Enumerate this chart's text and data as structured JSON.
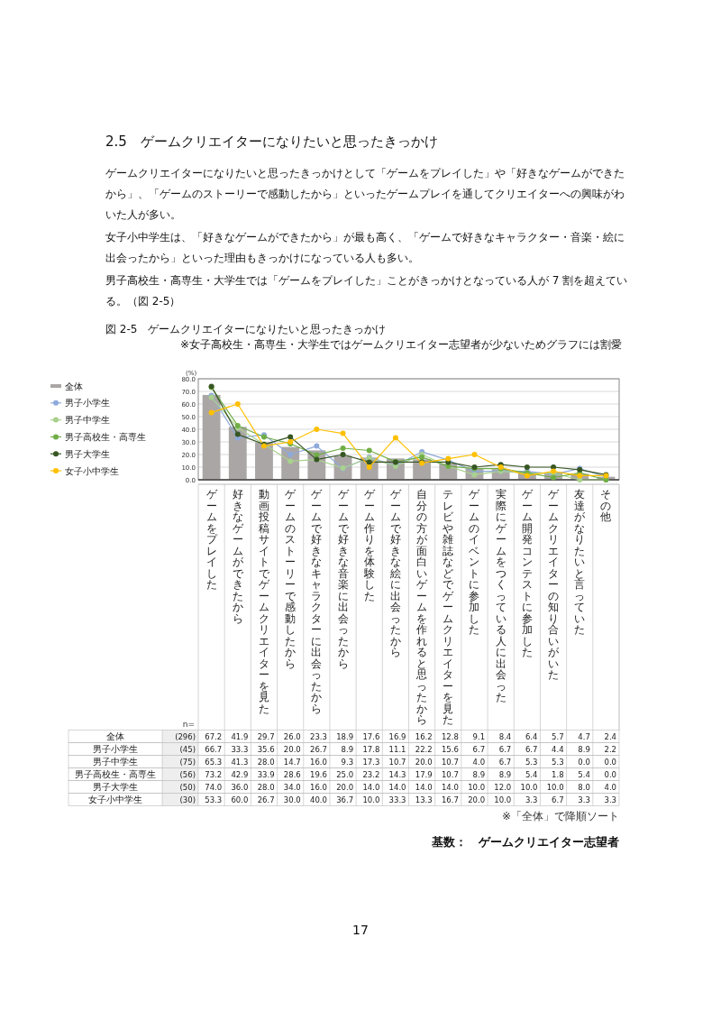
{
  "chart_data": {
    "type": "line",
    "title": "図 2-5　ゲームクリエイターになりたいと思ったきっかけ",
    "ylabel": "(%)",
    "categories": [
      "ゲームをプレイした",
      "好きなゲームができたから",
      "動画投稿サイトでゲームクリエイターを見た",
      "ゲームのストーリーで感動したから",
      "ゲームで好きなキャラクターに出会ったから",
      "ゲームで好きな音楽に出会ったから",
      "ゲーム作りを体験した",
      "ゲームで好きな絵に出会ったから",
      "自分の方が面白いゲームを作れると思ったから",
      "テレビや雑誌などでゲームクリエイターを見た",
      "ゲームのイベントに参加した",
      "実際にゲームをつくっている人に出会った",
      "ゲーム開発コンテストに参加した",
      "ゲームクリエイターの知り合いがいた",
      "友達がなりたいと言っていた",
      "その他"
    ],
    "series": [
      {
        "name": "全体",
        "type": "bar",
        "color": "#aba6a6",
        "values": [
          67.2,
          41.9,
          29.7,
          26.0,
          23.3,
          18.9,
          17.6,
          16.9,
          16.2,
          12.8,
          9.1,
          8.4,
          6.4,
          5.7,
          4.7,
          2.4
        ],
        "value_labels": [
          "67.2",
          "41.9",
          "29.7",
          "26.0",
          "23.3",
          "18.9",
          "17.6",
          "16.9",
          "16.2",
          "12.8",
          "9.1",
          "8.4",
          "6.4",
          "5.7",
          "4.7",
          "2.4"
        ]
      },
      {
        "name": "男子小学生",
        "color": "#8eaadb",
        "values": [
          66.7,
          33.3,
          35.6,
          20.0,
          26.7,
          8.9,
          17.8,
          11.1,
          22.2,
          15.6,
          6.7,
          6.7,
          6.7,
          4.4,
          8.9,
          2.2
        ],
        "value_labels": [
          "66.7",
          "33.3",
          "35.6",
          "20.0",
          "26.7",
          "8.9",
          "17.8",
          "11.1",
          "22.2",
          "15.6",
          "6.7",
          "6.7",
          "6.7",
          "4.4",
          "8.9",
          "2.2"
        ]
      },
      {
        "name": "男子中学生",
        "color": "#a9d18e",
        "values": [
          65.3,
          41.3,
          28.0,
          14.7,
          16.0,
          9.3,
          17.3,
          10.7,
          20.0,
          10.7,
          4.0,
          6.7,
          5.3,
          5.3,
          0.0,
          0.0
        ],
        "value_labels": [
          "65.3",
          "41.3",
          "28.0",
          "14.7",
          "16.0",
          "9.3",
          "17.3",
          "10.7",
          "20.0",
          "10.7",
          "4.0",
          "6.7",
          "5.3",
          "5.3",
          "0.0",
          "0.0"
        ]
      },
      {
        "name": "男子高校生・高専生",
        "color": "#70ad47",
        "values": [
          73.2,
          42.9,
          33.9,
          28.6,
          19.6,
          25.0,
          23.2,
          14.3,
          17.9,
          10.7,
          8.9,
          8.9,
          5.4,
          1.8,
          5.4,
          0.0
        ],
        "value_labels": [
          "73.2",
          "42.9",
          "33.9",
          "28.6",
          "19.6",
          "25.0",
          "23.2",
          "14.3",
          "17.9",
          "10.7",
          "8.9",
          "8.9",
          "5.4",
          "1.8",
          "5.4",
          "0.0"
        ]
      },
      {
        "name": "男子大学生",
        "color": "#375623",
        "values": [
          74.0,
          36.0,
          28.0,
          34.0,
          16.0,
          20.0,
          14.0,
          14.0,
          14.0,
          14.0,
          10.0,
          12.0,
          10.0,
          10.0,
          8.0,
          4.0
        ],
        "value_labels": [
          "74.0",
          "36.0",
          "28.0",
          "34.0",
          "16.0",
          "20.0",
          "14.0",
          "14.0",
          "14.0",
          "14.0",
          "10.0",
          "12.0",
          "10.0",
          "10.0",
          "8.0",
          "4.0"
        ]
      },
      {
        "name": "女子小中学生",
        "color": "#ffc000",
        "values": [
          53.3,
          60.0,
          26.7,
          30.0,
          40.0,
          36.7,
          10.0,
          33.3,
          13.3,
          16.7,
          20.0,
          10.0,
          3.3,
          6.7,
          3.3,
          3.3
        ],
        "value_labels": [
          "53.3",
          "60.0",
          "26.7",
          "30.0",
          "40.0",
          "36.7",
          "10.0",
          "33.3",
          "13.3",
          "16.7",
          "20.0",
          "10.0",
          "3.3",
          "6.7",
          "3.3",
          "3.3"
        ]
      }
    ],
    "ylim": [
      0,
      80
    ],
    "yticks": [
      {
        "value": 0,
        "label": "0.0"
      },
      {
        "value": 10,
        "label": "10.0"
      },
      {
        "value": 20,
        "label": "20.0"
      },
      {
        "value": 30,
        "label": "30.0"
      },
      {
        "value": 40,
        "label": "40.0"
      },
      {
        "value": 50,
        "label": "50.0"
      },
      {
        "value": 60,
        "label": "60.0"
      },
      {
        "value": 70,
        "label": "70.0"
      },
      {
        "value": 80,
        "label": "80.0"
      }
    ],
    "grid": "y",
    "legend": "left",
    "marker": "circle",
    "annotations": [
      "2.5　ゲームクリエイターになりたいと思ったきっかけ",
      "ゲームクリエイターになりたいと思ったきっかけとして「ゲームをプレイした」や「好きなゲームができたから」、「ゲームのストーリーで感動したから」といったゲームプレイを通してクリエイターへの興味がわいた人が多い。",
      "女子小中学生は、「好きなゲームができたから」が最も高く、「ゲームで好きなキャラクター・音楽・絵に出会ったから」といった理由もきっかけになっている人も多い。",
      "男子高校生・高専生・大学生では「ゲームをプレイした」ことがきっかけとなっている人が 7 割を超えている。（図 2-5）",
      "※女子高校生・高専生・大学生ではゲームクリエイター志望者が少ないためグラフには割愛",
      "n=",
      "(296)",
      "(45)",
      "(75)",
      "(56)",
      "(50)",
      "(30)",
      "※「全体」で降順ソート",
      "基数：　ゲームクリエイター志望者",
      "17"
    ]
  }
}
